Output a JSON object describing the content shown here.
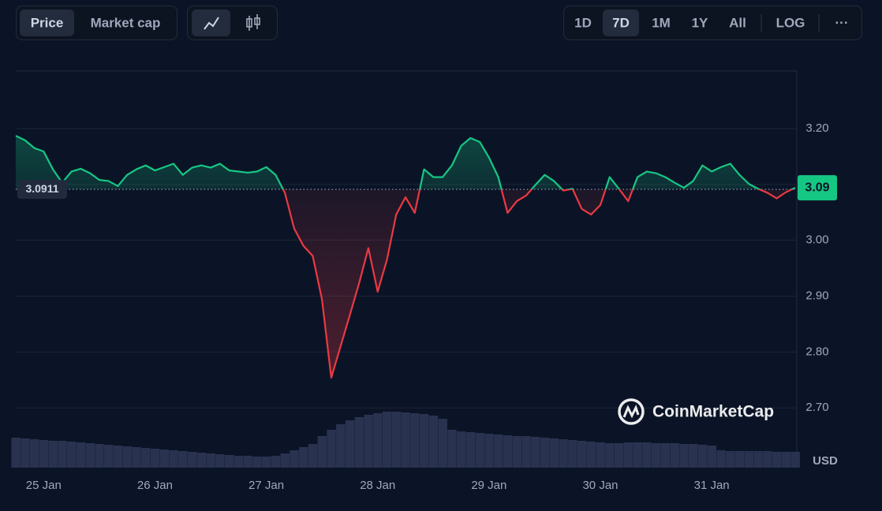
{
  "toolbar": {
    "metric_tabs": [
      "Price",
      "Market cap"
    ],
    "ranges": [
      "1D",
      "7D",
      "1M",
      "1Y",
      "All"
    ],
    "scale_toggle": "LOG",
    "more": "···"
  },
  "chart_data": {
    "type": "line",
    "unit_label": "USD",
    "watermark": "CoinMarketCap",
    "up_color": "#16c784",
    "down_color": "#ea3943",
    "volume_color": "#29324f",
    "grid": true,
    "baseline": {
      "value": 3.0911,
      "label": "3.0911"
    },
    "ylim": [
      2.593,
      3.303
    ],
    "yticks": [
      {
        "value": 2.7,
        "label": "2.70"
      },
      {
        "value": 2.8,
        "label": "2.80"
      },
      {
        "value": 2.9,
        "label": "2.90"
      },
      {
        "value": 3.0,
        "label": "3.00"
      },
      {
        "value": 3.1,
        "label": "3.10"
      },
      {
        "value": 3.2,
        "label": "3.20"
      }
    ],
    "categories": [
      null,
      null,
      null,
      "25 Jan",
      null,
      null,
      null,
      null,
      null,
      null,
      null,
      null,
      null,
      null,
      null,
      "26 Jan",
      null,
      null,
      null,
      null,
      null,
      null,
      null,
      null,
      null,
      null,
      null,
      "27 Jan",
      null,
      null,
      null,
      null,
      null,
      null,
      null,
      null,
      null,
      null,
      null,
      "28 Jan",
      null,
      null,
      null,
      null,
      null,
      null,
      null,
      null,
      null,
      null,
      null,
      "29 Jan",
      null,
      null,
      null,
      null,
      null,
      null,
      null,
      null,
      null,
      null,
      null,
      "30 Jan",
      null,
      null,
      null,
      null,
      null,
      null,
      null,
      null,
      null,
      null,
      null,
      "31 Jan",
      null,
      null,
      null,
      null,
      null,
      null,
      null,
      null,
      null
    ],
    "values": [
      3.187,
      3.179,
      3.165,
      3.159,
      3.127,
      3.103,
      3.123,
      3.128,
      3.12,
      3.108,
      3.106,
      3.097,
      3.117,
      3.127,
      3.134,
      3.125,
      3.131,
      3.137,
      3.117,
      3.13,
      3.134,
      3.13,
      3.137,
      3.125,
      3.123,
      3.121,
      3.123,
      3.131,
      3.117,
      3.085,
      3.021,
      2.99,
      2.972,
      2.894,
      2.754,
      2.81,
      2.866,
      2.923,
      2.986,
      2.908,
      2.965,
      3.046,
      3.077,
      3.049,
      3.127,
      3.113,
      3.113,
      3.134,
      3.169,
      3.183,
      3.176,
      3.148,
      3.113,
      3.049,
      3.07,
      3.08,
      3.099,
      3.117,
      3.106,
      3.089,
      3.092,
      3.056,
      3.046,
      3.063,
      3.113,
      3.092,
      3.07,
      3.113,
      3.123,
      3.12,
      3.113,
      3.103,
      3.094,
      3.106,
      3.134,
      3.123,
      3.131,
      3.137,
      3.117,
      3.101,
      3.092,
      3.085,
      3.075,
      3.086,
      3.094
    ],
    "value_labels": [
      null,
      null,
      null,
      null,
      null,
      null,
      null,
      null,
      null,
      null,
      null,
      null,
      null,
      null,
      null,
      null,
      null,
      null,
      null,
      null,
      null,
      null,
      null,
      null,
      null,
      null,
      null,
      null,
      null,
      null,
      null,
      null,
      null,
      null,
      null,
      null,
      null,
      null,
      null,
      null,
      null,
      null,
      null,
      null,
      null,
      null,
      null,
      null,
      null,
      null,
      null,
      null,
      null,
      null,
      null,
      null,
      null,
      null,
      null,
      null,
      null,
      null,
      null,
      null,
      null,
      null,
      null,
      null,
      null,
      null,
      null,
      null,
      null,
      null,
      null,
      null,
      null,
      null,
      null,
      null,
      null,
      null,
      null,
      null,
      "3.09"
    ],
    "volume": [
      38,
      37,
      36,
      35,
      34,
      34,
      33,
      32,
      31,
      30,
      29,
      28,
      27,
      26,
      25,
      24,
      23,
      22,
      21,
      20,
      19,
      18,
      17,
      16,
      15,
      15,
      14,
      14,
      15,
      18,
      22,
      26,
      30,
      40,
      48,
      55,
      60,
      64,
      67,
      69,
      71,
      71,
      70,
      69,
      68,
      66,
      62,
      48,
      46,
      45,
      44,
      43,
      42,
      41,
      40,
      40,
      39,
      38,
      37,
      36,
      35,
      34,
      33,
      32,
      31,
      31,
      32,
      32,
      32,
      31,
      31,
      31,
      30,
      30,
      29,
      28,
      22,
      21,
      21,
      21,
      21,
      21,
      20,
      20,
      20
    ]
  }
}
